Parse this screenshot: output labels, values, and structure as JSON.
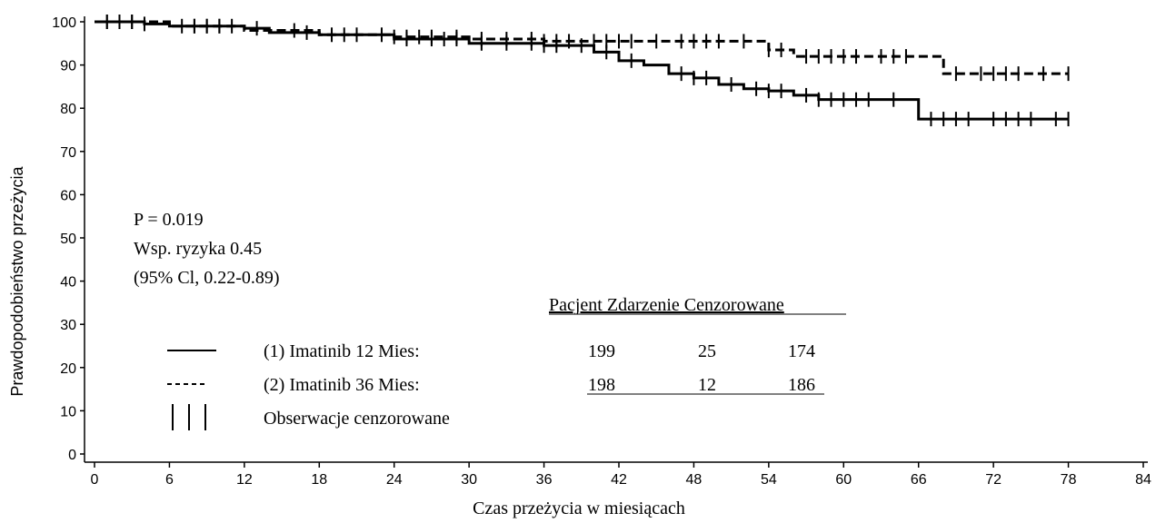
{
  "chart_data": {
    "type": "line",
    "title": "",
    "xlabel": "Czas przeżycia w miesiącach",
    "ylabel": "Prawdopodobieństwo przeżycia",
    "xlim": [
      0,
      84
    ],
    "ylim": [
      0,
      100
    ],
    "x_ticks": [
      0,
      6,
      12,
      18,
      24,
      30,
      36,
      42,
      48,
      54,
      60,
      66,
      72,
      78,
      84
    ],
    "y_ticks": [
      0,
      10,
      20,
      30,
      40,
      50,
      60,
      70,
      80,
      90,
      100
    ],
    "grid": false,
    "series": [
      {
        "name": "(1) Imatinib 12 Mies:",
        "style": "solid",
        "color": "#000000",
        "step_x": [
          0,
          4,
          6,
          12,
          14,
          18,
          24,
          30,
          36,
          40,
          42,
          44,
          46,
          48,
          50,
          52,
          54,
          56,
          58,
          60,
          62,
          64,
          65,
          66,
          70,
          78
        ],
        "step_y": [
          100,
          99.5,
          99,
          98.5,
          97.5,
          97,
          96,
          95,
          94.5,
          93,
          91,
          90,
          88,
          87,
          85.5,
          84.5,
          84,
          83,
          82,
          82,
          82,
          82,
          82,
          77.5,
          77.5,
          77.5
        ],
        "censored_x": [
          1,
          2,
          3,
          4,
          7,
          8,
          9,
          10,
          11,
          13,
          17,
          19,
          21,
          23,
          25,
          27,
          28,
          29,
          31,
          33,
          35,
          36,
          37,
          39,
          41,
          43,
          47,
          48,
          49,
          51,
          53,
          54,
          55,
          57,
          58,
          59,
          60,
          61,
          62,
          64,
          67,
          68,
          69,
          70,
          72,
          73,
          74,
          75,
          77,
          78
        ]
      },
      {
        "name": "(2) Imatinib 36 Mies:",
        "style": "dashed",
        "color": "#000000",
        "step_x": [
          0,
          6,
          12,
          18,
          24,
          30,
          36,
          42,
          54,
          56,
          68,
          78
        ],
        "step_y": [
          100,
          99,
          98,
          97,
          96.5,
          96,
          95.5,
          95.5,
          93.5,
          92,
          88,
          88
        ],
        "censored_x": [
          1,
          2,
          3,
          8,
          9,
          10,
          16,
          20,
          24,
          25,
          26,
          27,
          29,
          31,
          33,
          35,
          36,
          37,
          38,
          40,
          41,
          42,
          43,
          45,
          47,
          48,
          49,
          50,
          52,
          54,
          55,
          57,
          58,
          59,
          60,
          61,
          63,
          64,
          65,
          69,
          71,
          72,
          73,
          74,
          76,
          78
        ]
      }
    ],
    "annotations": {
      "p_value": "P = 0.019",
      "hazard_ratio": "Wsp. ryzyka 0.45",
      "ci": "(95% Cl, 0.22-0.89)"
    },
    "table": {
      "header": "Pacjent Zdarzenie Cenzorowane",
      "rows": [
        {
          "symbol": "——",
          "label": "(1) Imatinib 12 Mies:",
          "patients": "199",
          "events": "25",
          "censored": "174"
        },
        {
          "symbol": "-----",
          "label": "(2) Imatinib 36 Mies:",
          "patients": "198",
          "events": "12",
          "censored": "186"
        }
      ],
      "censor_symbol": "│ │ │",
      "censor_label": "Obserwacje cenzorowane"
    }
  }
}
